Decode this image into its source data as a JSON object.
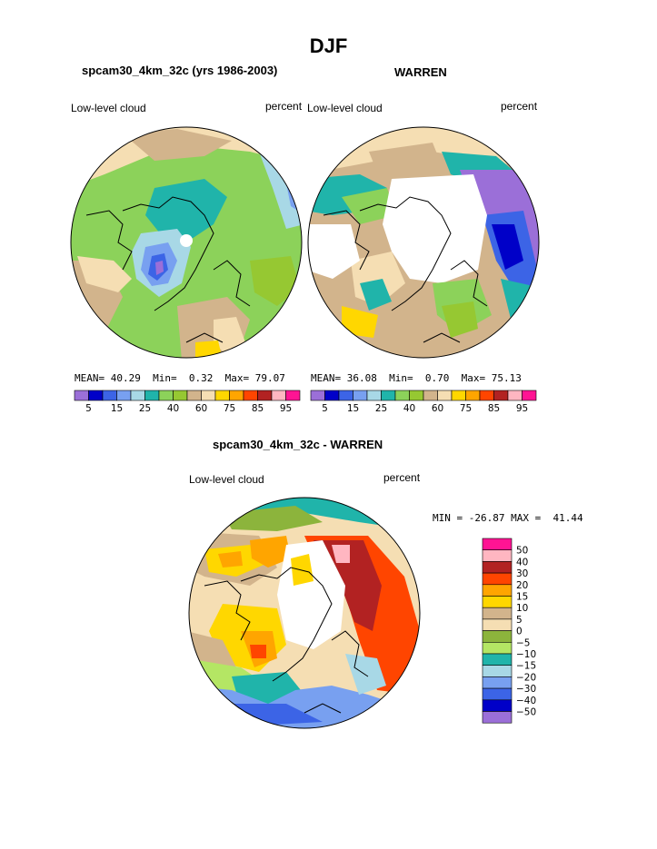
{
  "page": {
    "main_title": "DJF"
  },
  "chart_data": [
    {
      "type": "heatmap",
      "projection": "north-polar-stereographic",
      "title": "spcam30_4km_32c (yrs 1986-2003)",
      "left_label": "Low-level cloud",
      "right_label": "percent",
      "stats": {
        "mean_label": "MEAN=",
        "mean": "40.29",
        "min_label": "Min=",
        "min": "0.32",
        "max_label": "Max=",
        "max": "79.07"
      },
      "colorbar": {
        "orientation": "horizontal",
        "tick_labels": [
          "5",
          "15",
          "25",
          "40",
          "60",
          "75",
          "85",
          "95"
        ],
        "levels": [
          5,
          10,
          15,
          20,
          25,
          30,
          40,
          50,
          60,
          65,
          75,
          80,
          85,
          90,
          95
        ],
        "colors": [
          "#9b6fd8",
          "#0000c8",
          "#3c64e6",
          "#78a0f0",
          "#a8d8e6",
          "#20b4aa",
          "#8cd25a",
          "#96c832",
          "#d2b48c",
          "#f5deb3",
          "#ffd700",
          "#ffa500",
          "#ff4500",
          "#b22222",
          "#ffb6c1",
          "#ff1493"
        ]
      }
    },
    {
      "type": "heatmap",
      "projection": "north-polar-stereographic",
      "title": "WARREN",
      "left_label": "Low-level cloud",
      "right_label": "percent",
      "stats": {
        "mean_label": "MEAN=",
        "mean": "36.08",
        "min_label": "Min=",
        "min": "0.70",
        "max_label": "Max=",
        "max": "75.13"
      },
      "colorbar": {
        "orientation": "horizontal",
        "tick_labels": [
          "5",
          "15",
          "25",
          "40",
          "60",
          "75",
          "85",
          "95"
        ],
        "levels": [
          5,
          10,
          15,
          20,
          25,
          30,
          40,
          50,
          60,
          65,
          75,
          80,
          85,
          90,
          95
        ],
        "colors": [
          "#9b6fd8",
          "#0000c8",
          "#3c64e6",
          "#78a0f0",
          "#a8d8e6",
          "#20b4aa",
          "#8cd25a",
          "#96c832",
          "#d2b48c",
          "#f5deb3",
          "#ffd700",
          "#ffa500",
          "#ff4500",
          "#b22222",
          "#ffb6c1",
          "#ff1493"
        ]
      }
    },
    {
      "type": "heatmap",
      "projection": "north-polar-stereographic",
      "title": "spcam30_4km_32c - WARREN",
      "left_label": "Low-level cloud",
      "right_label": "percent",
      "stats_text": "MIN = -26.87 MAX =  41.44",
      "colorbar": {
        "orientation": "vertical",
        "tick_labels": [
          "50",
          "40",
          "30",
          "20",
          "15",
          "10",
          "5",
          "0",
          "−5",
          "−10",
          "−15",
          "−20",
          "−30",
          "−40",
          "−50"
        ],
        "colors": [
          "#ff1493",
          "#ffb6c1",
          "#b22222",
          "#ff4500",
          "#ffa500",
          "#ffd700",
          "#d2b48c",
          "#f5deb3",
          "#8cb43c",
          "#b4e664",
          "#20b4aa",
          "#a8d8e6",
          "#78a0f0",
          "#3c64e6",
          "#0000c8",
          "#9b6fd8"
        ]
      }
    }
  ]
}
